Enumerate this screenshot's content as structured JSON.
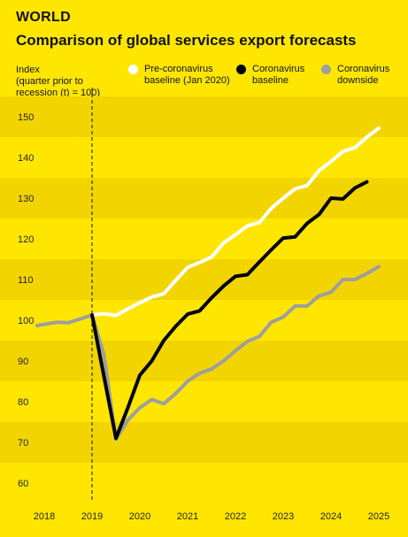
{
  "header": {
    "kicker": "WORLD",
    "title": "Comparison of global services export forecasts"
  },
  "legend": [
    {
      "label": "Pre-coronavirus\nbaseline (Jan 2020)",
      "color": "#FFFFFF"
    },
    {
      "label": "Coronavirus\nbaseline",
      "color": "#000000"
    },
    {
      "label": "Coronavirus\ndownside",
      "color": "#9E9E9E"
    }
  ],
  "chart_data": {
    "type": "line",
    "title": "Comparison of global services export forecasts",
    "ylabel": "Index\n(quarter prior to\nrecession (t) = 100)",
    "xlabel": "",
    "ylim": [
      57,
      153
    ],
    "xlim": [
      2017.85,
      2025.35
    ],
    "yticks": [
      60,
      70,
      80,
      90,
      100,
      110,
      120,
      130,
      140,
      150
    ],
    "xticks": [
      2018,
      2019,
      2020,
      2021,
      2022,
      2023,
      2024,
      2025
    ],
    "xtick_labels": [
      "2018",
      "2019",
      "2020",
      "2021",
      "2022",
      "2023",
      "2024",
      "2025"
    ],
    "vline": 2019.0,
    "grid": "alternating horizontal bands",
    "series": [
      {
        "name": "Pre-coronavirus baseline (Jan 2020)",
        "color": "#FFFFFF",
        "points": [
          [
            2019.0,
            101.3
          ],
          [
            2019.25,
            101.6
          ],
          [
            2019.5,
            101.2
          ],
          [
            2019.75,
            102.8
          ],
          [
            2020.0,
            104.3
          ],
          [
            2020.25,
            105.7
          ],
          [
            2020.5,
            106.5
          ],
          [
            2020.75,
            109.8
          ],
          [
            2021.0,
            113.0
          ],
          [
            2021.25,
            114.2
          ],
          [
            2021.5,
            115.5
          ],
          [
            2021.75,
            119.0
          ],
          [
            2022.0,
            121.0
          ],
          [
            2022.25,
            123.2
          ],
          [
            2022.5,
            124.0
          ],
          [
            2022.75,
            127.5
          ],
          [
            2023.0,
            130.0
          ],
          [
            2023.25,
            132.3
          ],
          [
            2023.5,
            133.1
          ],
          [
            2023.75,
            136.8
          ],
          [
            2024.0,
            139.0
          ],
          [
            2024.25,
            141.5
          ],
          [
            2024.5,
            142.4
          ],
          [
            2024.75,
            145.0
          ],
          [
            2025.0,
            147.2
          ]
        ]
      },
      {
        "name": "Coronavirus baseline",
        "color": "#000000",
        "points": [
          [
            2019.0,
            101.3
          ],
          [
            2019.5,
            71.0
          ],
          [
            2019.75,
            78.5
          ],
          [
            2020.0,
            86.5
          ],
          [
            2020.25,
            90.0
          ],
          [
            2020.5,
            95.0
          ],
          [
            2020.75,
            98.5
          ],
          [
            2021.0,
            101.5
          ],
          [
            2021.25,
            102.3
          ],
          [
            2021.5,
            105.5
          ],
          [
            2021.75,
            108.4
          ],
          [
            2022.0,
            110.8
          ],
          [
            2022.25,
            111.2
          ],
          [
            2022.5,
            114.3
          ],
          [
            2022.75,
            117.3
          ],
          [
            2023.0,
            120.2
          ],
          [
            2023.25,
            120.5
          ],
          [
            2023.5,
            123.8
          ],
          [
            2023.75,
            126.0
          ],
          [
            2024.0,
            130.0
          ],
          [
            2024.25,
            129.8
          ],
          [
            2024.5,
            132.5
          ],
          [
            2024.75,
            134.0
          ]
        ]
      },
      {
        "name": "Coronavirus downside",
        "color": "#9E9E9E",
        "points": [
          [
            2017.85,
            98.7
          ],
          [
            2018.25,
            99.5
          ],
          [
            2018.5,
            99.4
          ],
          [
            2018.75,
            100.3
          ],
          [
            2019.0,
            101.3
          ],
          [
            2019.25,
            91.5
          ],
          [
            2019.5,
            70.8
          ],
          [
            2019.75,
            75.5
          ],
          [
            2020.0,
            78.5
          ],
          [
            2020.25,
            80.5
          ],
          [
            2020.5,
            79.5
          ],
          [
            2020.75,
            82.0
          ],
          [
            2021.0,
            85.0
          ],
          [
            2021.25,
            87.0
          ],
          [
            2021.5,
            88.0
          ],
          [
            2021.75,
            90.0
          ],
          [
            2022.0,
            92.5
          ],
          [
            2022.25,
            94.8
          ],
          [
            2022.5,
            96.0
          ],
          [
            2022.75,
            99.5
          ],
          [
            2023.0,
            100.8
          ],
          [
            2023.25,
            103.5
          ],
          [
            2023.5,
            103.5
          ],
          [
            2023.75,
            106.0
          ],
          [
            2024.0,
            106.9
          ],
          [
            2024.25,
            110.0
          ],
          [
            2024.5,
            110.0
          ],
          [
            2024.75,
            111.5
          ],
          [
            2025.0,
            113.2
          ]
        ]
      }
    ]
  }
}
